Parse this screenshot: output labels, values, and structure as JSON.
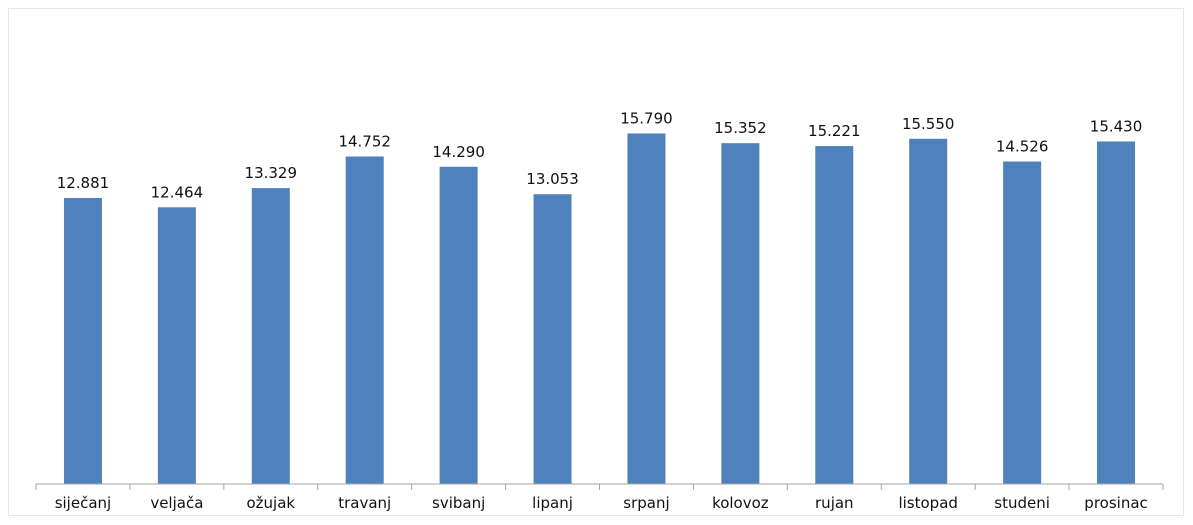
{
  "chart_data": {
    "type": "bar",
    "title": "",
    "xlabel": "",
    "ylabel": "",
    "categories": [
      "siječanj",
      "veljača",
      "ožujak",
      "travanj",
      "svibanj",
      "lipanj",
      "srpanj",
      "kolovoz",
      "rujan",
      "listopad",
      "studeni",
      "prosinac"
    ],
    "values": [
      12881,
      12464,
      13329,
      14752,
      14290,
      13053,
      15790,
      15352,
      15221,
      15550,
      14526,
      15430
    ],
    "value_labels": [
      "12.881",
      "12.464",
      "13.329",
      "14.752",
      "14.290",
      "13.053",
      "15.790",
      "15.352",
      "15.221",
      "15.550",
      "14.526",
      "15.430"
    ],
    "ylim": [
      0,
      20000
    ],
    "grid": false,
    "legend": "none",
    "y_axis_visible": false,
    "bar_color": "#4f81bd",
    "axis_color": "#a6a6a6"
  }
}
